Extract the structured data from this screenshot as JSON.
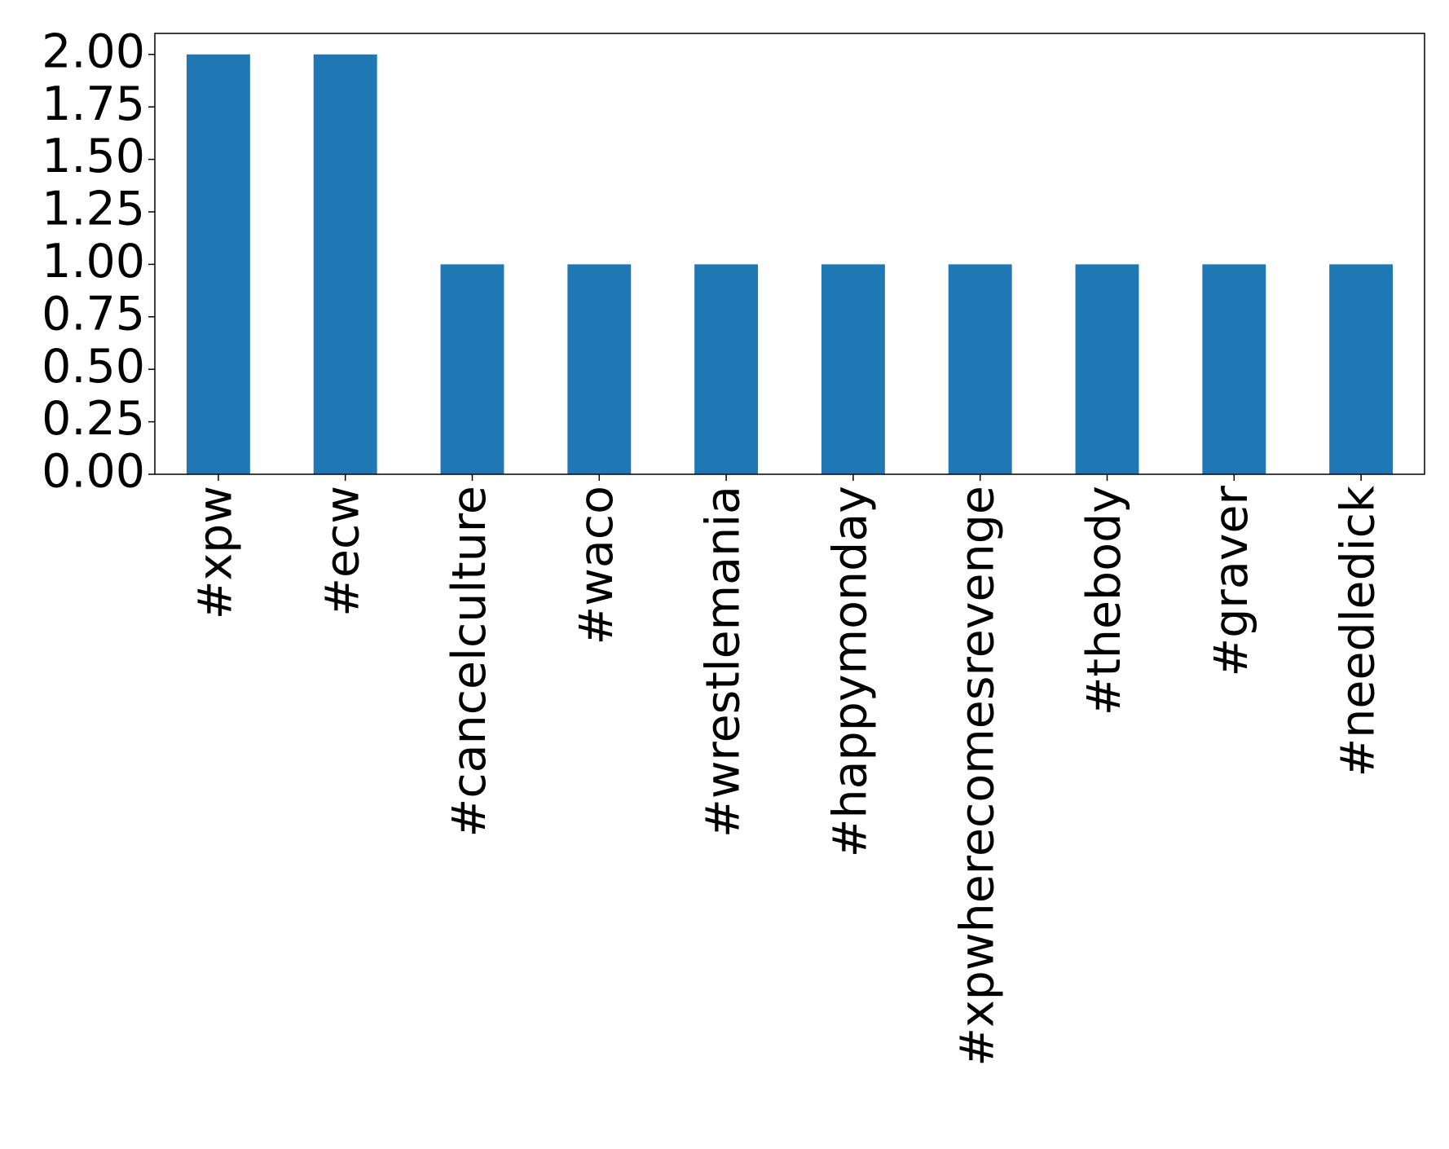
{
  "chart_data": {
    "type": "bar",
    "categories": [
      "#xpw",
      "#ecw",
      "#cancelculture",
      "#waco",
      "#wrestlemania",
      "#happymonday",
      "#xpwherecomesrevenge",
      "#thebody",
      "#graver",
      "#needledick"
    ],
    "values": [
      2,
      2,
      1,
      1,
      1,
      1,
      1,
      1,
      1,
      1
    ],
    "color": "#1f77b4",
    "ylim": [
      0,
      2.1
    ],
    "yticks": [
      {
        "value": 0,
        "label": "0.00"
      },
      {
        "value": 0.25,
        "label": "0.25"
      },
      {
        "value": 0.5,
        "label": "0.50"
      },
      {
        "value": 0.75,
        "label": "0.75"
      },
      {
        "value": 1,
        "label": "1.00"
      },
      {
        "value": 1.25,
        "label": "1.25"
      },
      {
        "value": 1.5,
        "label": "1.50"
      },
      {
        "value": 1.75,
        "label": "1.75"
      },
      {
        "value": 2,
        "label": "2.00"
      }
    ],
    "grid": false
  }
}
